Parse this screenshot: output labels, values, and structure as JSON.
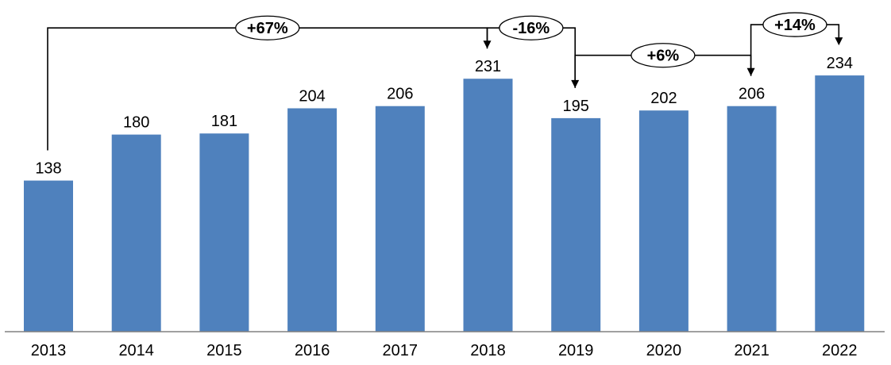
{
  "chart_data": {
    "type": "bar",
    "categories": [
      "2013",
      "2014",
      "2015",
      "2016",
      "2017",
      "2018",
      "2019",
      "2020",
      "2021",
      "2022"
    ],
    "values": [
      138,
      180,
      181,
      204,
      206,
      231,
      195,
      202,
      206,
      234
    ],
    "title": "",
    "xlabel": "",
    "ylabel": "",
    "ylim": [
      0,
      250
    ],
    "grid": false,
    "legend": "none",
    "bar_color": "#4F81BD",
    "annotations": [
      {
        "label": "+67%",
        "from": "2013",
        "to": "2018"
      },
      {
        "label": "-16%",
        "from": "2018",
        "to": "2019"
      },
      {
        "label": "+6%",
        "from": "2019",
        "to": "2021"
      },
      {
        "label": "+14%",
        "from": "2021",
        "to": "2022"
      }
    ]
  }
}
